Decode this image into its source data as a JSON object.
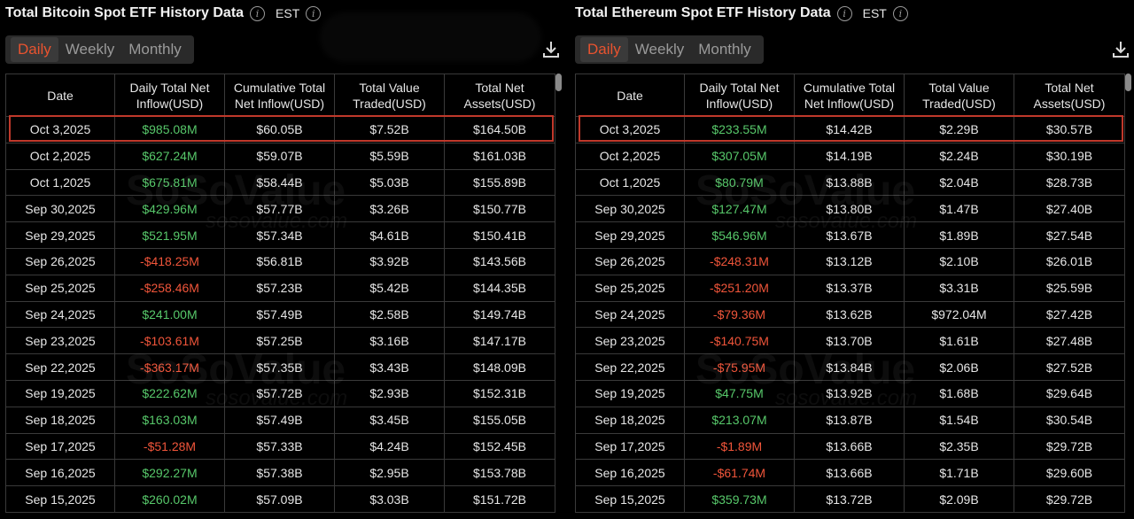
{
  "colors": {
    "positive": "#57c86a",
    "negative": "#f0553a",
    "accent": "#e8532f",
    "highlight": "#c0392b"
  },
  "watermark": {
    "logo": "SoSoValue",
    "url": "sosovalue.com"
  },
  "btc": {
    "title": "Total Bitcoin Spot ETF History Data",
    "tz": "EST",
    "tabs": [
      "Daily",
      "Weekly",
      "Monthly"
    ],
    "headers": [
      "Date",
      "Daily Total Net Inflow(USD)",
      "Cumulative Total Net Inflow(USD)",
      "Total Value Traded(USD)",
      "Total Net Assets(USD)"
    ],
    "rows": [
      [
        "Oct 3,2025",
        "$985.08M",
        "$60.05B",
        "$7.52B",
        "$164.50B"
      ],
      [
        "Oct 2,2025",
        "$627.24M",
        "$59.07B",
        "$5.59B",
        "$161.03B"
      ],
      [
        "Oct 1,2025",
        "$675.81M",
        "$58.44B",
        "$5.03B",
        "$155.89B"
      ],
      [
        "Sep 30,2025",
        "$429.96M",
        "$57.77B",
        "$3.26B",
        "$150.77B"
      ],
      [
        "Sep 29,2025",
        "$521.95M",
        "$57.34B",
        "$4.61B",
        "$150.41B"
      ],
      [
        "Sep 26,2025",
        "-$418.25M",
        "$56.81B",
        "$3.92B",
        "$143.56B"
      ],
      [
        "Sep 25,2025",
        "-$258.46M",
        "$57.23B",
        "$5.42B",
        "$144.35B"
      ],
      [
        "Sep 24,2025",
        "$241.00M",
        "$57.49B",
        "$2.58B",
        "$149.74B"
      ],
      [
        "Sep 23,2025",
        "-$103.61M",
        "$57.25B",
        "$3.16B",
        "$147.17B"
      ],
      [
        "Sep 22,2025",
        "-$363.17M",
        "$57.35B",
        "$3.43B",
        "$148.09B"
      ],
      [
        "Sep 19,2025",
        "$222.62M",
        "$57.72B",
        "$2.93B",
        "$152.31B"
      ],
      [
        "Sep 18,2025",
        "$163.03M",
        "$57.49B",
        "$3.45B",
        "$155.05B"
      ],
      [
        "Sep 17,2025",
        "-$51.28M",
        "$57.33B",
        "$4.24B",
        "$152.45B"
      ],
      [
        "Sep 16,2025",
        "$292.27M",
        "$57.38B",
        "$2.95B",
        "$153.78B"
      ],
      [
        "Sep 15,2025",
        "$260.02M",
        "$57.09B",
        "$3.03B",
        "$151.72B"
      ]
    ]
  },
  "eth": {
    "title": "Total Ethereum Spot ETF History Data",
    "tz": "EST",
    "tabs": [
      "Daily",
      "Weekly",
      "Monthly"
    ],
    "headers": [
      "Date",
      "Daily Total Net Inflow(USD)",
      "Cumulative Total Net Inflow(USD)",
      "Total Value Traded(USD)",
      "Total Net Assets(USD)"
    ],
    "rows": [
      [
        "Oct 3,2025",
        "$233.55M",
        "$14.42B",
        "$2.29B",
        "$30.57B"
      ],
      [
        "Oct 2,2025",
        "$307.05M",
        "$14.19B",
        "$2.24B",
        "$30.19B"
      ],
      [
        "Oct 1,2025",
        "$80.79M",
        "$13.88B",
        "$2.04B",
        "$28.73B"
      ],
      [
        "Sep 30,2025",
        "$127.47M",
        "$13.80B",
        "$1.47B",
        "$27.40B"
      ],
      [
        "Sep 29,2025",
        "$546.96M",
        "$13.67B",
        "$1.89B",
        "$27.54B"
      ],
      [
        "Sep 26,2025",
        "-$248.31M",
        "$13.12B",
        "$2.10B",
        "$26.01B"
      ],
      [
        "Sep 25,2025",
        "-$251.20M",
        "$13.37B",
        "$3.31B",
        "$25.59B"
      ],
      [
        "Sep 24,2025",
        "-$79.36M",
        "$13.62B",
        "$972.04M",
        "$27.42B"
      ],
      [
        "Sep 23,2025",
        "-$140.75M",
        "$13.70B",
        "$1.61B",
        "$27.48B"
      ],
      [
        "Sep 22,2025",
        "-$75.95M",
        "$13.84B",
        "$2.06B",
        "$27.52B"
      ],
      [
        "Sep 19,2025",
        "$47.75M",
        "$13.92B",
        "$1.68B",
        "$29.64B"
      ],
      [
        "Sep 18,2025",
        "$213.07M",
        "$13.87B",
        "$1.54B",
        "$30.54B"
      ],
      [
        "Sep 17,2025",
        "-$1.89M",
        "$13.66B",
        "$2.35B",
        "$29.72B"
      ],
      [
        "Sep 16,2025",
        "-$61.74M",
        "$13.66B",
        "$1.71B",
        "$29.60B"
      ],
      [
        "Sep 15,2025",
        "$359.73M",
        "$13.72B",
        "$2.09B",
        "$29.72B"
      ]
    ]
  }
}
